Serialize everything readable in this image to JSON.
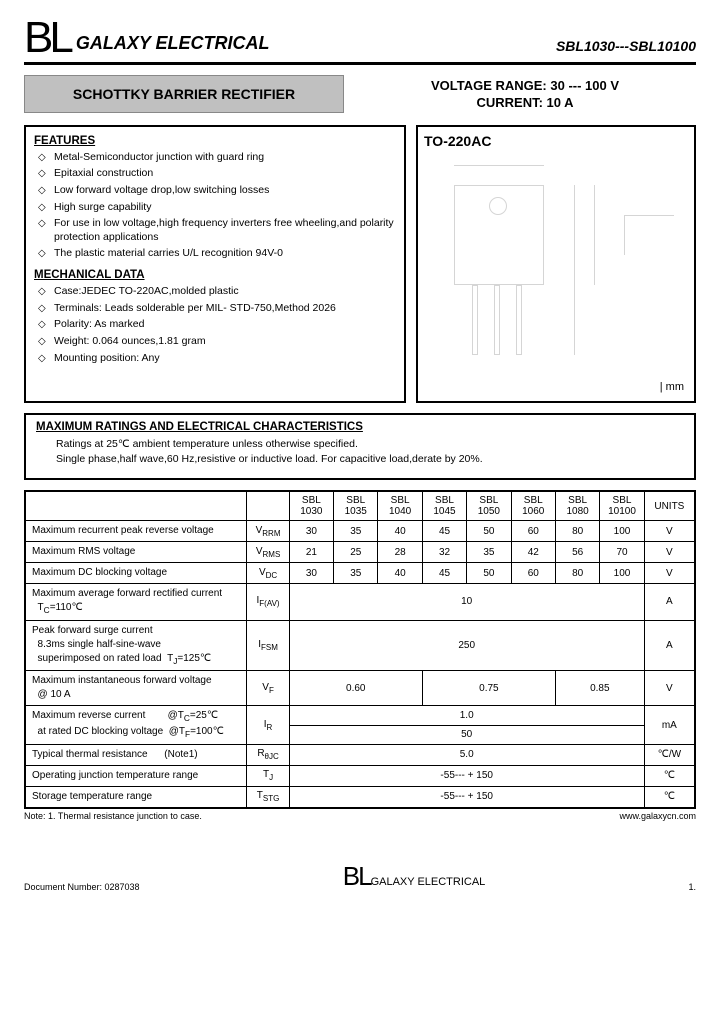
{
  "header": {
    "logo": "BL",
    "brand": "GALAXY ELECTRICAL",
    "part_range": "SBL1030---SBL10100"
  },
  "title_box": "SCHOTTKY BARRIER RECTIFIER",
  "spec_box": {
    "line1": "VOLTAGE RANGE: 30 --- 100 V",
    "line2": "CURRENT: 10 A"
  },
  "features": {
    "heading": "FEATURES",
    "items": [
      "Metal-Semiconductor junction with guard ring",
      "Epitaxial construction",
      "Low forward voltage drop,low switching losses",
      "High surge capability",
      "For use in low voltage,high frequency inverters free wheeling,and polarity protection applications",
      "The plastic material carries U/L recognition 94V-0"
    ]
  },
  "mechanical": {
    "heading": "MECHANICAL DATA",
    "items": [
      "Case:JEDEC TO-220AC,molded plastic",
      "Terminals: Leads solderable per MIL- STD-750,Method 2026",
      "Polarity: As marked",
      "Weight: 0.064 ounces,1.81 gram",
      "Mounting position: Any"
    ]
  },
  "package": {
    "label": "TO-220AC",
    "unit": "mm"
  },
  "ratings": {
    "heading": "MAXIMUM RATINGS AND ELECTRICAL CHARACTERISTICS",
    "line1": "Ratings at 25℃ ambient temperature unless otherwise specified.",
    "line2": "Single phase,half wave,60 Hz,resistive or inductive load. For capacitive load,derate by 20%."
  },
  "table": {
    "columns": [
      "SBL 1030",
      "SBL 1035",
      "SBL 1040",
      "SBL 1045",
      "SBL 1050",
      "SBL 1060",
      "SBL 1080",
      "SBL 10100"
    ],
    "units_head": "UNITS",
    "rows": [
      {
        "param": "Maximum recurrent peak reverse voltage",
        "sym": "V<sub>RRM</sub>",
        "vals": [
          "30",
          "35",
          "40",
          "45",
          "50",
          "60",
          "80",
          "100"
        ],
        "unit": "V"
      },
      {
        "param": "Maximum RMS voltage",
        "sym": "V<sub>RMS</sub>",
        "vals": [
          "21",
          "25",
          "28",
          "32",
          "35",
          "42",
          "56",
          "70"
        ],
        "unit": "V"
      },
      {
        "param": "Maximum DC blocking voltage",
        "sym": "V<sub>DC</sub>",
        "vals": [
          "30",
          "35",
          "40",
          "45",
          "50",
          "60",
          "80",
          "100"
        ],
        "unit": "V"
      },
      {
        "param": "Maximum average forward rectified current<br>&nbsp;&nbsp;T<sub>C</sub>=110℃",
        "sym": "I<sub>F(AV)</sub>",
        "span": 8,
        "vals": [
          "10"
        ],
        "unit": "A"
      },
      {
        "param": "Peak forward surge current<br>&nbsp;&nbsp;8.3ms single half-sine-wave<br>&nbsp;&nbsp;superimposed on rated load&nbsp;&nbsp;T<sub>J</sub>=125℃",
        "sym": "I<sub>FSM</sub>",
        "span": 8,
        "vals": [
          "250"
        ],
        "unit": "A"
      },
      {
        "param": "Maximum instantaneous forward voltage<br>&nbsp;&nbsp;@ 10 A",
        "sym": "V<sub>F</sub>",
        "spans": [
          3,
          3,
          2
        ],
        "vals": [
          "0.60",
          "0.75",
          "0.85"
        ],
        "unit": "V"
      },
      {
        "param": "Maximum reverse current&nbsp;&nbsp;&nbsp;&nbsp;&nbsp;&nbsp;&nbsp;&nbsp;@T<sub>C</sub>=25℃<br>&nbsp;&nbsp;at rated DC blocking voltage&nbsp;&nbsp;@T<sub>F</sub>=100℃",
        "sym": "I<sub>R</sub>",
        "double": true,
        "vals": [
          "1.0",
          "50"
        ],
        "unit": "mA"
      },
      {
        "param": "Typical thermal resistance&nbsp;&nbsp;&nbsp;&nbsp;&nbsp;&nbsp;(Note1)",
        "sym": "R<sub>θJC</sub>",
        "span": 8,
        "vals": [
          "5.0"
        ],
        "unit": "℃/W"
      },
      {
        "param": "Operating junction temperature range",
        "sym": "T<sub>J</sub>",
        "span": 8,
        "vals": [
          "-55--- + 150"
        ],
        "unit": "℃"
      },
      {
        "param": "Storage temperature range",
        "sym": "T<sub>STG</sub>",
        "span": 8,
        "vals": [
          "-55--- + 150"
        ],
        "unit": "℃"
      }
    ]
  },
  "note": "Note: 1. Thermal resistance junction to case.",
  "url": "www.galaxycn.com",
  "footer": {
    "docnum": "Document Number: 0287038",
    "logo": "BL",
    "brand": "GALAXY ELECTRICAL",
    "page": "1."
  }
}
